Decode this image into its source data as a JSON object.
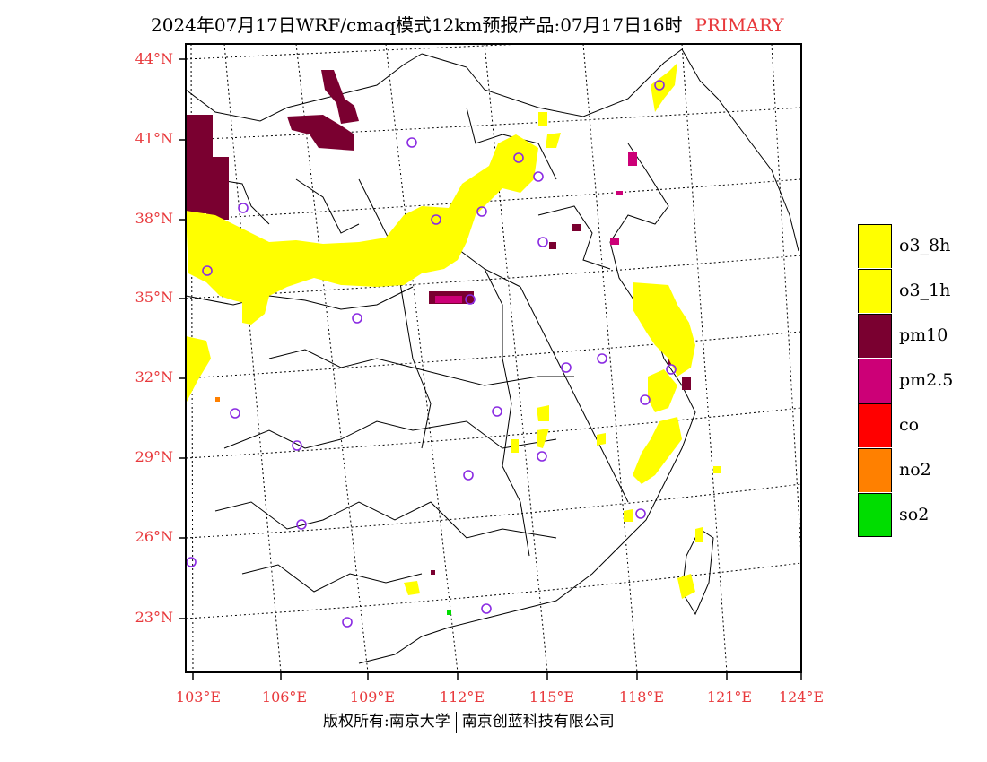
{
  "header": {
    "title": "2024年07月17日WRF/cmaq模式12km预报产品:07月17日16时",
    "tag": "PRIMARY"
  },
  "axes": {
    "lat_labels": [
      "44°N",
      "41°N",
      "38°N",
      "35°N",
      "32°N",
      "29°N",
      "26°N",
      "23°N"
    ],
    "lon_labels": [
      "103°E",
      "106°E",
      "109°E",
      "112°E",
      "115°E",
      "118°E",
      "121°E",
      "124°E"
    ]
  },
  "legend": {
    "items": [
      {
        "label": "o3_8h",
        "color": "#ffff00"
      },
      {
        "label": "o3_1h",
        "color": "#ffff00"
      },
      {
        "label": "pm10",
        "color": "#7a0030"
      },
      {
        "label": "pm2.5",
        "color": "#cc0077"
      },
      {
        "label": "co",
        "color": "#ff0000"
      },
      {
        "label": "no2",
        "color": "#ff8000"
      },
      {
        "label": "so2",
        "color": "#00dd00"
      }
    ]
  },
  "footer": {
    "left": "版权所有:南京大学",
    "right": "南京创蓝科技有限公司"
  },
  "colors": {
    "accent_red": "#e8393c",
    "station_marker": "#8a2be2"
  }
}
